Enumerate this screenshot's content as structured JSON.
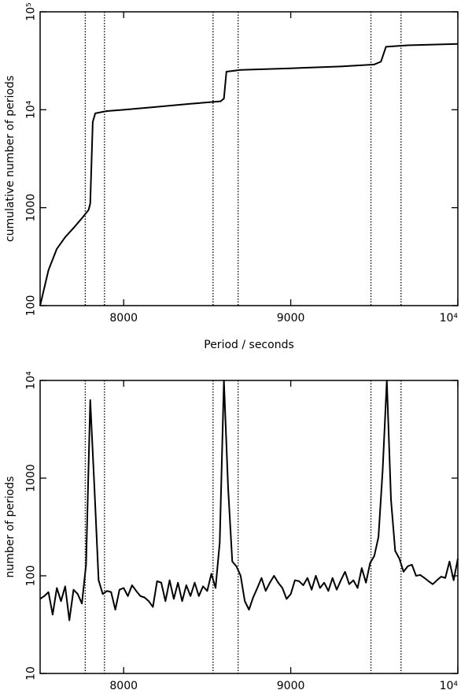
{
  "chart_data": [
    {
      "type": "line",
      "ylabel": "cumulative number of periods",
      "xlabel": "Period / seconds",
      "x": [
        7500,
        7550,
        7600,
        7650,
        7700,
        7750,
        7790,
        7800,
        7815,
        7830,
        7900,
        8000,
        8200,
        8400,
        8580,
        8600,
        8615,
        8700,
        9000,
        9300,
        9500,
        9540,
        9570,
        9700,
        10000
      ],
      "values": [
        100,
        230,
        380,
        500,
        620,
        780,
        950,
        1100,
        7500,
        9200,
        9700,
        10000,
        10700,
        11500,
        12200,
        13000,
        24500,
        25500,
        26500,
        27700,
        29000,
        31000,
        44000,
        45500,
        47000
      ],
      "color": "#000000",
      "ylog": true,
      "xlim": [
        7500,
        10000
      ],
      "xticks": [
        8000,
        9000,
        {
          "value": 10000,
          "label": "10⁴"
        }
      ],
      "ylim": [
        100,
        100000
      ],
      "yticks": [
        100,
        1000,
        {
          "value": 10000,
          "label": "10⁴"
        },
        {
          "value": 100000,
          "label": "10⁵"
        }
      ],
      "reference_lines": [
        7770,
        7885,
        8535,
        8685,
        9480,
        9660
      ]
    },
    {
      "type": "line",
      "ylabel": "number of periods",
      "x": [
        7500,
        7525,
        7550,
        7575,
        7600,
        7625,
        7650,
        7675,
        7700,
        7725,
        7750,
        7775,
        7800,
        7825,
        7850,
        7875,
        7900,
        7925,
        7950,
        7975,
        8000,
        8025,
        8050,
        8075,
        8100,
        8125,
        8150,
        8175,
        8200,
        8225,
        8250,
        8275,
        8300,
        8325,
        8350,
        8375,
        8400,
        8425,
        8450,
        8475,
        8500,
        8525,
        8550,
        8575,
        8600,
        8625,
        8650,
        8675,
        8700,
        8725,
        8750,
        8775,
        8800,
        8825,
        8850,
        8875,
        8900,
        8925,
        8950,
        8975,
        9000,
        9025,
        9050,
        9075,
        9100,
        9125,
        9150,
        9175,
        9200,
        9225,
        9250,
        9275,
        9300,
        9325,
        9350,
        9375,
        9400,
        9425,
        9450,
        9475,
        9500,
        9525,
        9550,
        9575,
        9600,
        9625,
        9650,
        9675,
        9700,
        9725,
        9750,
        9775,
        9800,
        9825,
        9850,
        9875,
        9900,
        9925,
        9950,
        9975,
        10000
      ],
      "values": [
        58,
        62,
        68,
        40,
        75,
        55,
        78,
        35,
        72,
        65,
        52,
        130,
        6300,
        800,
        90,
        65,
        70,
        68,
        45,
        72,
        75,
        62,
        80,
        70,
        62,
        60,
        55,
        48,
        88,
        85,
        55,
        90,
        58,
        85,
        55,
        80,
        62,
        85,
        62,
        78,
        70,
        105,
        75,
        220,
        10000,
        800,
        140,
        125,
        100,
        55,
        45,
        60,
        75,
        95,
        70,
        85,
        100,
        85,
        75,
        58,
        65,
        90,
        88,
        80,
        95,
        72,
        100,
        75,
        85,
        70,
        95,
        72,
        90,
        110,
        82,
        90,
        75,
        120,
        85,
        135,
        160,
        250,
        1200,
        10000,
        600,
        180,
        150,
        110,
        125,
        130,
        100,
        102,
        95,
        88,
        82,
        90,
        98,
        95,
        140,
        90,
        150
      ],
      "color": "#000000",
      "ylog": true,
      "xlim": [
        7500,
        10000
      ],
      "xticks": [
        8000,
        9000,
        {
          "value": 10000,
          "label": "10⁴"
        }
      ],
      "ylim": [
        10,
        10000
      ],
      "yticks": [
        10,
        100,
        1000,
        {
          "value": 10000,
          "label": "10⁴"
        }
      ],
      "reference_lines": [
        7770,
        7885,
        8535,
        8685,
        9480,
        9660
      ]
    }
  ]
}
